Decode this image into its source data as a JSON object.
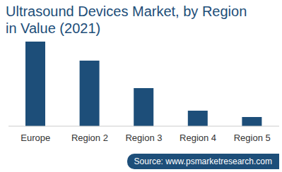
{
  "chart_data": {
    "type": "bar",
    "title": "Ultrasound Devices Market, by Region in Value (2021)",
    "categories": [
      "Europe",
      "Region 2",
      "Region 3",
      "Region 4",
      "Region 5"
    ],
    "values": [
      120,
      93,
      54,
      22,
      13
    ],
    "color": "#1d4e79",
    "ylim": [
      0,
      120
    ],
    "tick_labels": "x",
    "source": "Source: www.psmarketresearch.com"
  }
}
